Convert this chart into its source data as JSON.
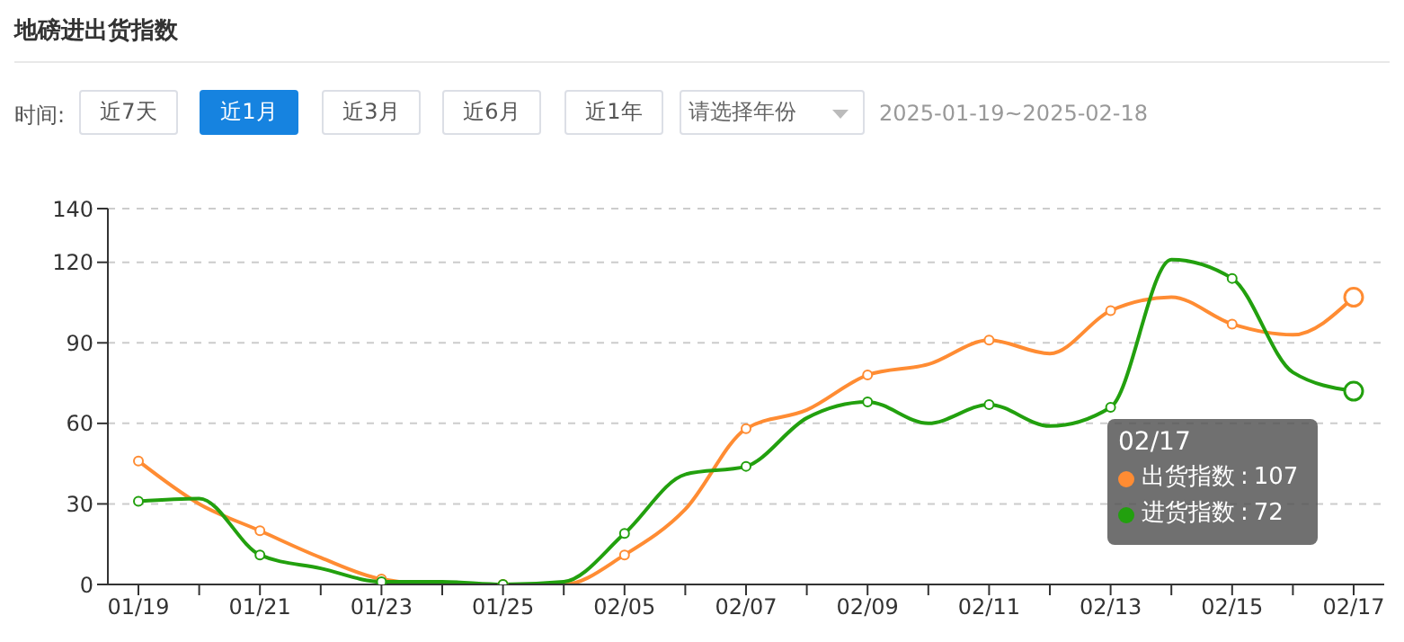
{
  "chart_data": {
    "type": "line",
    "title": "地磅进出货指数",
    "annotations": [
      "时间:",
      "近7天",
      "近1月",
      "近3月",
      "近6月",
      "近1年",
      "请选择年份",
      "2025-01-19~2025-02-18",
      ":",
      "107",
      "72"
    ],
    "legend": "bottom right",
    "categories": [
      "01/19",
      null,
      "01/21",
      null,
      "01/23",
      null,
      "01/25",
      null,
      "02/05",
      null,
      "02/07",
      null,
      "02/09",
      null,
      "02/11",
      null,
      "02/13",
      null,
      "02/15",
      null,
      "02/17"
    ],
    "series": [
      {
        "name": "出货指数",
        "color": "#ff8c33",
        "values": [
          46,
          30,
          20,
          10,
          2,
          0,
          0,
          0,
          11,
          28,
          58,
          65,
          78,
          82,
          91,
          86,
          102,
          107,
          97,
          93,
          107
        ]
      },
      {
        "name": "进货指数",
        "color": "#22a00e",
        "values": [
          31,
          32,
          11,
          6,
          1,
          1,
          0,
          1,
          19,
          41,
          44,
          62,
          68,
          60,
          67,
          59,
          66,
          121,
          114,
          79,
          72
        ]
      }
    ],
    "ylim": [
      0,
      140
    ],
    "yticks": [
      0,
      30,
      60,
      90,
      120,
      140
    ],
    "grid": "y",
    "marker": "circle",
    "line_style": "solid"
  }
}
